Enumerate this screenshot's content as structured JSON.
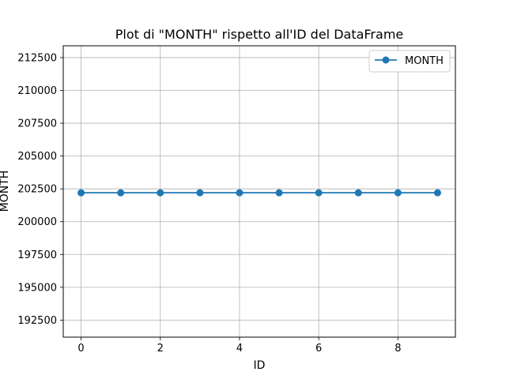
{
  "chart_data": {
    "type": "line",
    "title": "Plot di \"MONTH\" rispetto all'ID del DataFrame",
    "xlabel": "ID",
    "ylabel": "MONTH",
    "x": [
      0,
      1,
      2,
      3,
      4,
      5,
      6,
      7,
      8,
      9
    ],
    "series": [
      {
        "name": "MONTH",
        "values": [
          202201,
          202201,
          202201,
          202201,
          202201,
          202201,
          202201,
          202201,
          202201,
          202201
        ],
        "color": "#1f77b4",
        "marker": "circle"
      }
    ],
    "xlim": [
      -0.45,
      9.45
    ],
    "ylim": [
      191200,
      213400
    ],
    "xticks": [
      0,
      2,
      4,
      6,
      8
    ],
    "xtick_labels": [
      "0",
      "2",
      "4",
      "6",
      "8"
    ],
    "yticks": [
      192500,
      195000,
      197500,
      200000,
      202500,
      205000,
      207500,
      210000,
      212500
    ],
    "ytick_labels": [
      "192500",
      "195000",
      "197500",
      "200000",
      "202500",
      "205000",
      "207500",
      "210000",
      "212500"
    ],
    "grid": true,
    "legend": "top-right"
  }
}
